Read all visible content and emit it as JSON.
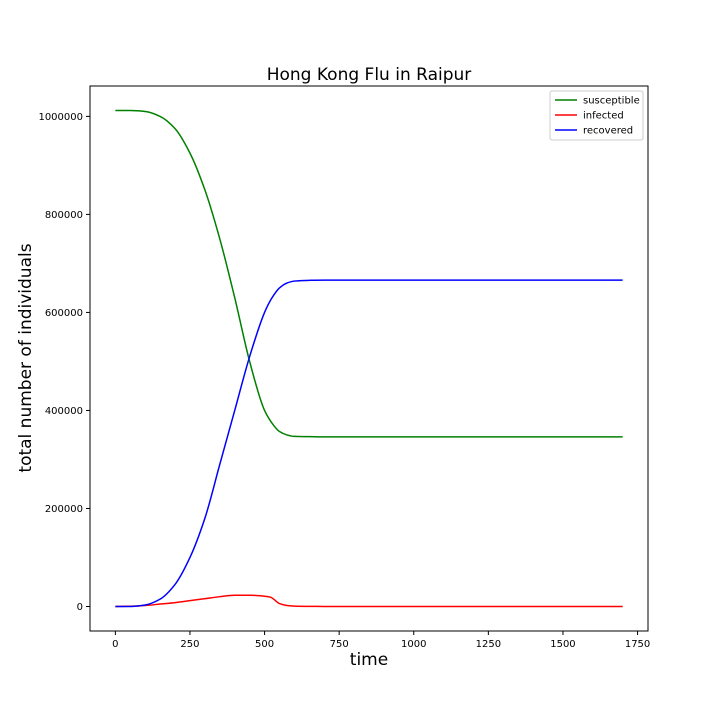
{
  "chart_data": {
    "type": "line",
    "title": "Hong Kong Flu in Raipur",
    "xlabel": "time",
    "ylabel": "total number of individuals",
    "xlim": [
      -85,
      1785
    ],
    "ylim": [
      -50000,
      1062000
    ],
    "xticks": [
      0,
      250,
      500,
      750,
      1000,
      1250,
      1500,
      1750
    ],
    "yticks": [
      0,
      200000,
      400000,
      600000,
      800000,
      1000000
    ],
    "grid": false,
    "legend_position": "top-right",
    "series": [
      {
        "name": "susceptible",
        "color": "#008000",
        "x": [
          0,
          50,
          100,
          150,
          200,
          250,
          300,
          350,
          400,
          450,
          500,
          530,
          550,
          575,
          600,
          650,
          700,
          800,
          1000,
          1250,
          1500,
          1700
        ],
        "y": [
          1012000,
          1012000,
          1010000,
          1000000,
          975000,
          925000,
          850000,
          750000,
          630000,
          500000,
          400000,
          370000,
          357000,
          350000,
          347000,
          346500,
          346000,
          346000,
          346000,
          346000,
          346000,
          346000
        ]
      },
      {
        "name": "infected",
        "color": "#ff0000",
        "x": [
          0,
          50,
          100,
          150,
          200,
          250,
          300,
          350,
          400,
          450,
          500,
          520,
          550,
          575,
          600,
          650,
          700,
          800,
          1000,
          1250,
          1500,
          1700
        ],
        "y": [
          0,
          500,
          2000,
          5000,
          8000,
          12000,
          16000,
          20000,
          23000,
          23000,
          21000,
          19000,
          6000,
          2000,
          800,
          300,
          100,
          0,
          0,
          0,
          0,
          0
        ]
      },
      {
        "name": "recovered",
        "color": "#0000ff",
        "x": [
          0,
          50,
          100,
          150,
          200,
          250,
          300,
          350,
          400,
          450,
          500,
          525,
          550,
          575,
          600,
          650,
          700,
          800,
          1000,
          1250,
          1500,
          1700
        ],
        "y": [
          0,
          0,
          3000,
          15000,
          45000,
          100000,
          180000,
          290000,
          400000,
          510000,
          600000,
          630000,
          650000,
          660000,
          664000,
          665500,
          666000,
          666000,
          666000,
          666000,
          666000,
          666000
        ]
      }
    ]
  }
}
